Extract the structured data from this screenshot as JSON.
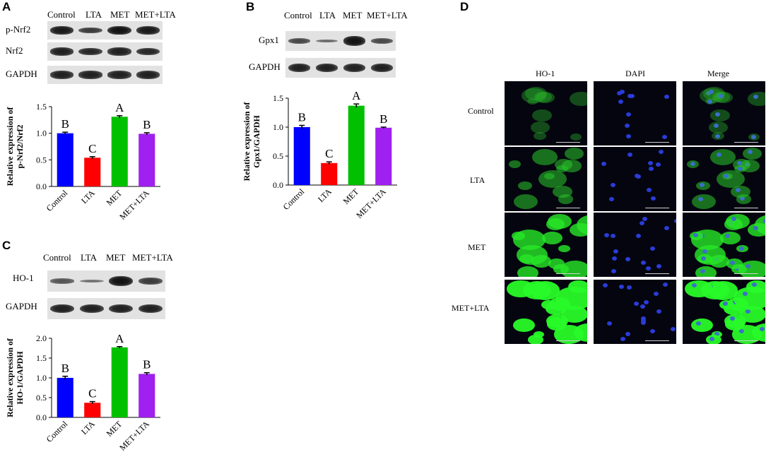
{
  "panels": {
    "A": {
      "letter": "A",
      "lanes": [
        "Control",
        "LTA",
        "MET",
        "MET+LTA"
      ],
      "blots": [
        {
          "label": "p-Nrf2",
          "intensity": [
            0.95,
            0.7,
            1.0,
            0.95
          ]
        },
        {
          "label": "Nrf2",
          "intensity": [
            0.9,
            0.85,
            0.9,
            0.85
          ]
        },
        {
          "label": "GAPDH",
          "intensity": [
            0.9,
            0.9,
            0.9,
            0.9
          ]
        }
      ]
    },
    "B": {
      "letter": "B",
      "lanes": [
        "Control",
        "LTA",
        "MET",
        "MET+LTA"
      ],
      "blots": [
        {
          "label": "Gpx1",
          "intensity": [
            0.6,
            0.35,
            1.0,
            0.6
          ]
        },
        {
          "label": "GAPDH",
          "intensity": [
            0.9,
            0.9,
            0.9,
            0.9
          ]
        }
      ]
    },
    "C": {
      "letter": "C",
      "lanes": [
        "Control",
        "LTA",
        "MET",
        "MET+LTA"
      ],
      "blots": [
        {
          "label": "HO-1",
          "intensity": [
            0.5,
            0.3,
            1.0,
            0.7
          ]
        },
        {
          "label": "GAPDH",
          "intensity": [
            0.9,
            0.9,
            0.9,
            0.9
          ]
        }
      ]
    },
    "D": {
      "letter": "D",
      "columns": [
        "HO-1",
        "DAPI",
        "Merge"
      ],
      "rows": [
        "Control",
        "LTA",
        "MET",
        "MET+LTA"
      ],
      "ho1_level": [
        0.25,
        0.45,
        0.8,
        1.0
      ]
    }
  },
  "chart_data": [
    {
      "panel": "A",
      "type": "bar",
      "categories": [
        "Control",
        "LTA",
        "MET",
        "MET+LTA"
      ],
      "values": [
        1.0,
        0.54,
        1.31,
        0.99
      ],
      "errors": [
        0.02,
        0.02,
        0.02,
        0.02
      ],
      "letters": [
        "B",
        "C",
        "A",
        "B"
      ],
      "colors": [
        "#0000ff",
        "#ff0000",
        "#00c000",
        "#a020f0"
      ],
      "ylabel_line1": "Relative expression of",
      "ylabel_line2": "p-Nrf2/Nrf2",
      "ylim": [
        0,
        1.5
      ],
      "yticks": [
        "0.0",
        "0.5",
        "1.0",
        "1.5"
      ],
      "ytick_values": [
        0,
        0.5,
        1.0,
        1.5
      ]
    },
    {
      "panel": "B",
      "type": "bar",
      "categories": [
        "Control",
        "LTA",
        "MET",
        "MET+LTA"
      ],
      "values": [
        1.0,
        0.38,
        1.37,
        0.99
      ],
      "errors": [
        0.03,
        0.02,
        0.03,
        0.01
      ],
      "letters": [
        "B",
        "C",
        "A",
        "B"
      ],
      "colors": [
        "#0000ff",
        "#ff0000",
        "#00c000",
        "#a020f0"
      ],
      "ylabel_line1": "Relative expression of",
      "ylabel_line2": "Gpx1/GAPDH",
      "ylim": [
        0,
        1.5
      ],
      "yticks": [
        "0.0",
        "0.5",
        "1.0",
        "1.5"
      ],
      "ytick_values": [
        0,
        0.5,
        1.0,
        1.5
      ]
    },
    {
      "panel": "C",
      "type": "bar",
      "categories": [
        "Control",
        "LTA",
        "MET",
        "MET+LTA"
      ],
      "values": [
        1.0,
        0.37,
        1.77,
        1.1
      ],
      "errors": [
        0.04,
        0.03,
        0.02,
        0.03
      ],
      "letters": [
        "B",
        "C",
        "A",
        "B"
      ],
      "colors": [
        "#0000ff",
        "#ff0000",
        "#00c000",
        "#a020f0"
      ],
      "ylabel_line1": "Relative expression of",
      "ylabel_line2": "HO-1/GAPDH",
      "ylim": [
        0,
        2.0
      ],
      "yticks": [
        "0.0",
        "0.5",
        "1.0",
        "1.5",
        "2.0"
      ],
      "ytick_values": [
        0,
        0.5,
        1.0,
        1.5,
        2.0
      ]
    }
  ]
}
